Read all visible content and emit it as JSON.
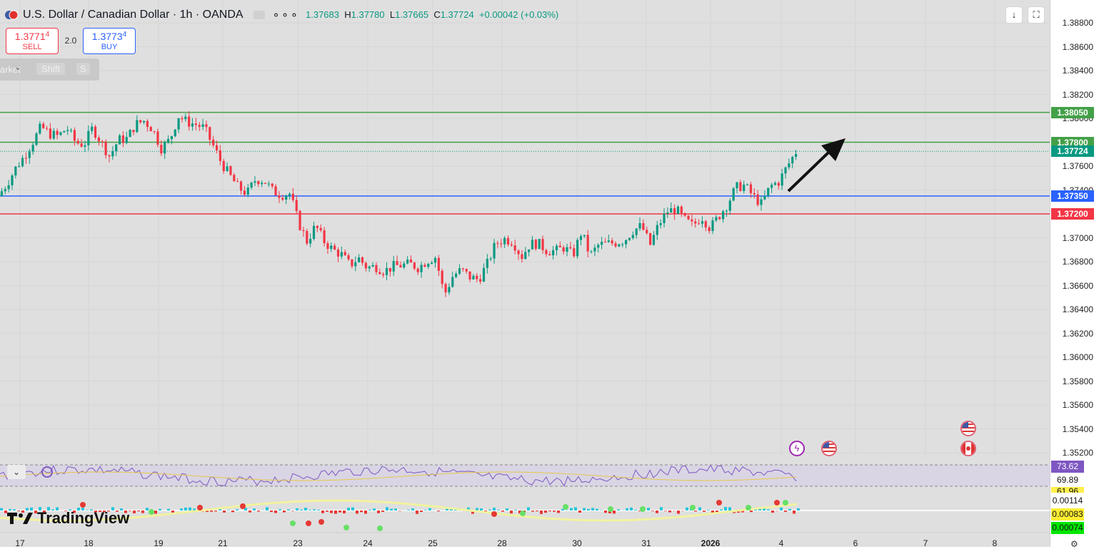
{
  "header": {
    "symbol_title": "U.S. Dollar / Canadian Dollar · 1h · OANDA",
    "more_icon": "more-dots-icon",
    "ohlc": {
      "o_label": "O",
      "o_value": "1.37683",
      "h_label": "H",
      "h_value": "1.37780",
      "l_label": "L",
      "l_value": "1.37665",
      "c_label": "C",
      "c_value": "1.37724",
      "change": "+0.00042 (+0.03%)"
    }
  },
  "trade": {
    "sell_price_main": "1.3771",
    "sell_price_pip": "4",
    "sell_label": "SELL",
    "spread": "2.0",
    "buy_price_main": "1.3773",
    "buy_price_pip": "4",
    "buy_label": "BUY"
  },
  "hint_bar": {
    "market": "arket",
    "shift": "Shift",
    "s": "S"
  },
  "price_axis": {
    "ticks": [
      "1.38800",
      "1.38600",
      "1.38400",
      "1.38200",
      "1.38000",
      "1.37600",
      "1.37400",
      "1.37000",
      "1.36800",
      "1.36600",
      "1.36400",
      "1.36200",
      "1.36000",
      "1.35800",
      "1.35600",
      "1.35400",
      "1.35200"
    ],
    "tags": [
      {
        "label": "1.38050",
        "price": 1.3805,
        "color": "#43a047"
      },
      {
        "label": "1.37800",
        "price": 1.378,
        "color": "#43a047"
      },
      {
        "label": "1.37724",
        "price": 1.37724,
        "color": "#089981"
      },
      {
        "label": "1.37350",
        "price": 1.3735,
        "color": "#2962ff"
      },
      {
        "label": "1.37200",
        "price": 1.372,
        "color": "#f23645"
      }
    ]
  },
  "indicators": {
    "rsi_value": "73.62",
    "rsi_ma": "69.89",
    "rsi_level": "61.96",
    "macd_1": "0.00114",
    "macd_2": "0.00083",
    "macd_3": "0.00074"
  },
  "date_axis": [
    "17",
    "18",
    "19",
    "21",
    "23",
    "24",
    "25",
    "28",
    "30",
    "31",
    "2026",
    "4",
    "6",
    "7",
    "8"
  ],
  "branding": {
    "logo_text": "TradingView"
  },
  "colors": {
    "up": "#089981",
    "down": "#f23645",
    "green_line": "#43a047",
    "blue_line": "#2962ff",
    "red_line": "#f23645"
  },
  "chart_data": {
    "type": "candlestick",
    "price_range": [
      1.3515,
      1.3895
    ],
    "horizontal_levels": [
      {
        "price": 1.3805,
        "color": "#43a047"
      },
      {
        "price": 1.378,
        "color": "#43a047"
      },
      {
        "price": 1.3735,
        "color": "#2962ff"
      },
      {
        "price": 1.372,
        "color": "#f23645"
      }
    ],
    "current_price": 1.37724,
    "close_path": [
      1.3735,
      1.3745,
      1.3758,
      1.3768,
      1.378,
      1.3793,
      1.3787,
      1.3785,
      1.3792,
      1.378,
      1.3778,
      1.3792,
      1.378,
      1.3768,
      1.3782,
      1.3783,
      1.3795,
      1.3798,
      1.3791,
      1.3775,
      1.3782,
      1.3802,
      1.3797,
      1.3795,
      1.3792,
      1.3778,
      1.3763,
      1.3752,
      1.3742,
      1.3737,
      1.3749,
      1.3748,
      1.3739,
      1.3736,
      1.3737,
      1.3713,
      1.3697,
      1.371,
      1.3697,
      1.369,
      1.3686,
      1.3677,
      1.3683,
      1.3675,
      1.3676,
      1.3672,
      1.3676,
      1.3677,
      1.3678,
      1.3675,
      1.3681,
      1.3684,
      1.3652,
      1.3668,
      1.3673,
      1.3667,
      1.3665,
      1.3678,
      1.3695,
      1.3699,
      1.3697,
      1.3684,
      1.3695,
      1.3695,
      1.3689,
      1.3689,
      1.3692,
      1.3685,
      1.3705,
      1.3685,
      1.3694,
      1.3695,
      1.3696,
      1.3698,
      1.3706,
      1.371,
      1.3694,
      1.3711,
      1.3722,
      1.3724,
      1.3715,
      1.371,
      1.3718,
      1.3708,
      1.3718,
      1.3728,
      1.3742,
      1.3744,
      1.3735,
      1.3728,
      1.3743,
      1.3747,
      1.376,
      1.3772
    ]
  }
}
